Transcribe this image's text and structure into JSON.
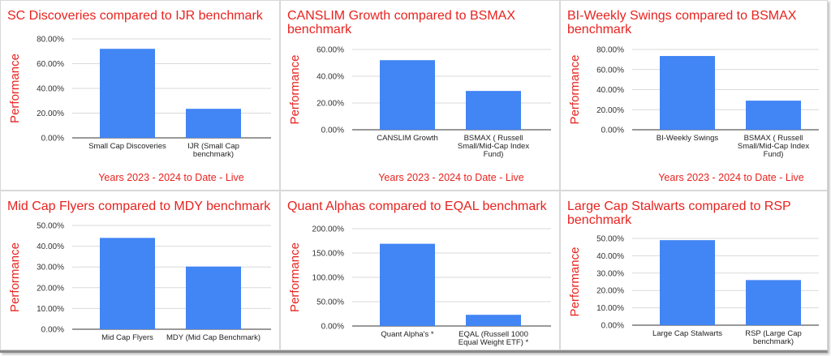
{
  "colors": {
    "bar": "#4285f4",
    "title": "#e8231f",
    "grid": "#d9d9d9",
    "axis": "#333333"
  },
  "chart_data": [
    {
      "type": "bar",
      "title": "SC Discoveries compared to IJR benchmark",
      "ylabel": "Performance",
      "xlabel": "Years 2023 - 2024 to Date - Live",
      "categories": [
        "Small Cap Discoveries",
        "IJR (Small Cap benchmark)"
      ],
      "category_lines": [
        [
          "Small Cap Discoveries"
        ],
        [
          "IJR (Small Cap",
          "benchmark)"
        ]
      ],
      "values": [
        72.0,
        23.5
      ],
      "ylim": [
        0,
        80
      ],
      "yticks": [
        "0.00%",
        "20.00%",
        "40.00%",
        "60.00%",
        "80.00%"
      ],
      "grid": true
    },
    {
      "type": "bar",
      "title": "CANSLIM Growth compared to BSMAX benchmark",
      "ylabel": "Performance",
      "xlabel": "Years 2023 - 2024 to Date - Live",
      "categories": [
        "CANSLIM Growth",
        "BSMAX ( Russell Small/Mid-Cap Index Fund)"
      ],
      "category_lines": [
        [
          "CANSLIM Growth"
        ],
        [
          "BSMAX ( Russell",
          "Small/Mid-Cap Index",
          "Fund)"
        ]
      ],
      "values": [
        52.0,
        29.0
      ],
      "ylim": [
        0,
        60
      ],
      "yticks": [
        "0.00%",
        "20.00%",
        "40.00%",
        "60.00%"
      ],
      "grid": true
    },
    {
      "type": "bar",
      "title": "BI-Weekly Swings compared to BSMAX benchmark",
      "ylabel": "Performance",
      "xlabel": "Years 2023 - 2024 to Date - Live",
      "categories": [
        "BI-Weekly Swings",
        "BSMAX ( Russell Small/Mid-Cap Index Fund)"
      ],
      "category_lines": [
        [
          "BI-Weekly Swings"
        ],
        [
          "BSMAX ( Russell",
          "Small/Mid-Cap Index",
          "Fund)"
        ]
      ],
      "values": [
        73.5,
        29.0
      ],
      "ylim": [
        0,
        80
      ],
      "yticks": [
        "0.00%",
        "20.00%",
        "40.00%",
        "60.00%",
        "80.00%"
      ],
      "grid": true
    },
    {
      "type": "bar",
      "title": "Mid Cap Flyers compared to MDY benchmark",
      "ylabel": "Performance",
      "xlabel": "",
      "categories": [
        "Mid Cap Flyers",
        "MDY (Mid Cap Benchmark)"
      ],
      "category_lines": [
        [
          "Mid Cap Flyers"
        ],
        [
          "MDY (Mid Cap Benchmark)"
        ]
      ],
      "values": [
        44.0,
        30.2
      ],
      "ylim": [
        0,
        50
      ],
      "yticks": [
        "0.00%",
        "10.00%",
        "20.00%",
        "30.00%",
        "40.00%",
        "50.00%"
      ],
      "grid": true
    },
    {
      "type": "bar",
      "title": "Quant Alphas compared to EQAL benchmark",
      "ylabel": "Performance",
      "xlabel": "",
      "categories": [
        "Quant Alpha's *",
        "EQAL (Russell 1000 Equal Weight ETF) *"
      ],
      "category_lines": [
        [
          "Quant Alpha's   *"
        ],
        [
          "EQAL (Russell 1000",
          "Equal Weight ETF)  *"
        ]
      ],
      "values": [
        169.0,
        23.0
      ],
      "ylim": [
        0,
        200
      ],
      "yticks": [
        "0.00%",
        "50.00%",
        "100.00%",
        "150.00%",
        "200.00%"
      ],
      "grid": true
    },
    {
      "type": "bar",
      "title": "Large Cap Stalwarts compared to RSP benchmark",
      "ylabel": "Performance",
      "xlabel": "",
      "categories": [
        "Large Cap Stalwarts",
        "RSP (Large Cap benchmark)"
      ],
      "category_lines": [
        [
          "Large Cap Stalwarts"
        ],
        [
          "RSP (Large Cap",
          "benchmark)"
        ]
      ],
      "values": [
        49.0,
        26.0
      ],
      "ylim": [
        0,
        50
      ],
      "yticks": [
        "0.00%",
        "10.00%",
        "20.00%",
        "30.00%",
        "40.00%",
        "50.00%"
      ],
      "grid": true
    }
  ]
}
